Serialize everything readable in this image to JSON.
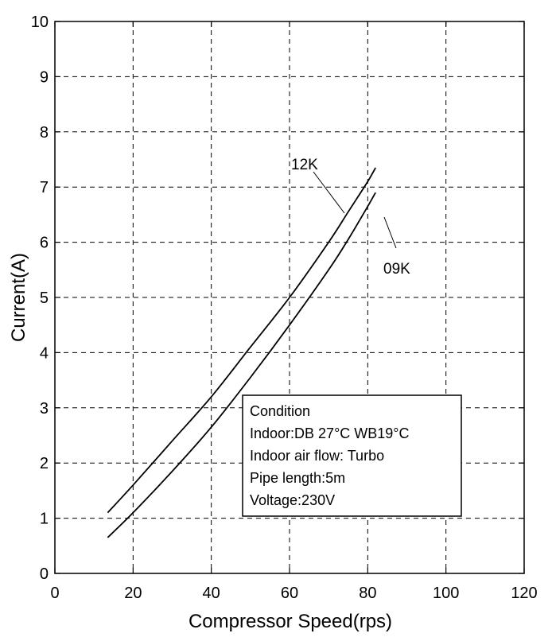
{
  "chart_data": {
    "type": "line",
    "xlabel": "Compressor Speed(rps)",
    "ylabel": "Current(A)",
    "xlim": [
      0,
      120
    ],
    "ylim": [
      0,
      10
    ],
    "x_ticks": [
      0,
      20,
      40,
      60,
      80,
      100,
      120
    ],
    "y_ticks": [
      0,
      1,
      2,
      3,
      4,
      5,
      6,
      7,
      8,
      9,
      10
    ],
    "grid": true,
    "grid_style": "dashed",
    "series": [
      {
        "name": "12K",
        "x": [
          13.5,
          20,
          30,
          40,
          50,
          60,
          70,
          75,
          80,
          82
        ],
        "y": [
          1.1,
          1.6,
          2.4,
          3.2,
          4.1,
          5.0,
          6.0,
          6.55,
          7.1,
          7.35
        ]
      },
      {
        "name": "09K",
        "x": [
          13.5,
          20,
          30,
          40,
          50,
          60,
          70,
          75,
          80,
          82
        ],
        "y": [
          0.65,
          1.1,
          1.85,
          2.65,
          3.55,
          4.5,
          5.5,
          6.05,
          6.65,
          6.9
        ]
      }
    ],
    "condition_box": {
      "lines": [
        "Condition",
        "Indoor:DB 27°C WB19°C",
        "Indoor air flow: Turbo",
        "Pipe length:5m",
        "Voltage:230V"
      ]
    }
  }
}
